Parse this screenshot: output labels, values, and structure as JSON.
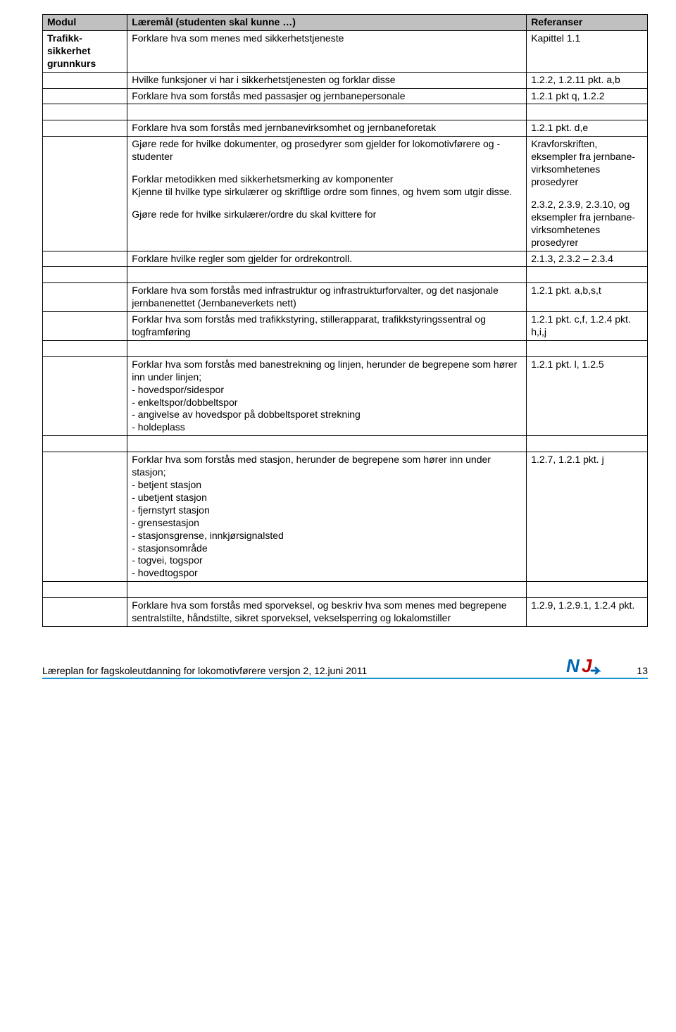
{
  "table": {
    "header_bg": "#c0c0c0",
    "border_color": "#000000",
    "columns": {
      "modul": "Modul",
      "laeremal": "Læremål (studenten skal kunne …)",
      "referanser": "Referanser"
    },
    "rows": [
      {
        "modul_html": "Trafikk-<br>sikkerhet<br>grunnkurs",
        "laeremal_html": "Forklare hva som menes med sikkerhetstjeneste",
        "ref_html": "Kapittel 1.1"
      },
      {
        "modul_html": "",
        "laeremal_html": "Hvilke funksjoner vi har i sikkerhetstjenesten og forklar disse",
        "ref_html": "1.2.2, 1.2.11 pkt. a,b"
      },
      {
        "modul_html": "",
        "laeremal_html": "Forklare hva som forstås med passasjer og jernbanepersonale",
        "ref_html": "1.2.1 pkt q, 1.2.2"
      },
      {
        "modul_html": "",
        "laeremal_html": "",
        "ref_html": ""
      },
      {
        "modul_html": "",
        "laeremal_html": "Forklare hva som forstås med jernbanevirksomhet og jernbaneforetak",
        "ref_html": "1.2.1 pkt. d,e"
      },
      {
        "modul_html": "",
        "laeremal_html": "<p>Gjøre rede for hvilke dokumenter, og prosedyrer som gjelder for lokomotivførere og -studenter</p><p class=\"sp\">Forklar metodikken med sikkerhetsmerking av komponenter</p><p>Kjenne til hvilke type sirkulærer og skriftlige ordre som finnes, og hvem som utgir disse.</p><p class=\"sp\">Gjøre rede for hvilke sirkulærer/ordre du skal kvittere for</p>",
        "ref_html": "<p>Kravforskriften, eksempler fra jernbane-virksomhetenes prosedyrer</p><p class=\"sp\">2.3.2, 2.3.9, 2.3.10, og eksempler fra jernbane-virksomhetenes prosedyrer</p>"
      },
      {
        "modul_html": "",
        "laeremal_html": "Forklare hvilke regler som gjelder for ordrekontroll.",
        "ref_html": "2.1.3, 2.3.2 – 2.3.4"
      },
      {
        "modul_html": "",
        "laeremal_html": "",
        "ref_html": ""
      },
      {
        "modul_html": "",
        "laeremal_html": "Forklare hva som forstås med infrastruktur og infrastrukturforvalter, og det nasjonale jernbanenettet (Jernbaneverkets nett)",
        "ref_html": "1.2.1 pkt. a,b,s,t"
      },
      {
        "modul_html": "",
        "laeremal_html": "Forklar hva som forstås med trafikkstyring, stillerapparat, trafikkstyringssentral og togframføring",
        "ref_html": "1.2.1 pkt. c,f, 1.2.4 pkt. h,i,j"
      },
      {
        "modul_html": "",
        "laeremal_html": "",
        "ref_html": ""
      },
      {
        "modul_html": "",
        "laeremal_html": "<p>Forklar hva som forstås med banestrekning og linjen, herunder de begrepene som hører inn under linjen;</p><p>- hovedspor/sidespor</p><p>- enkeltspor/dobbeltspor</p><p>- angivelse av hovedspor på dobbeltsporet strekning</p><p>- holdeplass</p>",
        "ref_html": "1.2.1 pkt. l, 1.2.5"
      },
      {
        "modul_html": "",
        "laeremal_html": "",
        "ref_html": ""
      },
      {
        "modul_html": "",
        "laeremal_html": "<p>Forklar hva som forstås med stasjon, herunder de begrepene som hører inn under stasjon;</p><p>- betjent stasjon</p><p>- ubetjent stasjon</p><p>- fjernstyrt stasjon</p><p>- grensestasjon</p><p>- stasjonsgrense, innkjørsignalsted</p><p>- stasjonsområde</p><p>- togvei, togspor</p><p>- hovedtogspor</p>",
        "ref_html": "1.2.7, 1.2.1 pkt. j"
      },
      {
        "modul_html": "",
        "laeremal_html": "",
        "ref_html": ""
      },
      {
        "modul_html": "",
        "laeremal_html": "Forklare hva som forstås med sporveksel, og beskriv hva som menes med begrepene sentralstilte, håndstilte, sikret sporveksel, vekselsperring og lokalomstiller",
        "ref_html": "1.2.9, 1.2.9.1, 1.2.4 pkt."
      }
    ]
  },
  "footer": {
    "text": "Læreplan for fagskoleutdanning for lokomotivførere versjon 2, 12.juni 2011",
    "pagenum": "13",
    "logo_text": "NJ",
    "logo_color_n": "#0066b3",
    "logo_color_j": "#c00000",
    "underline_color": "#1f8fd6"
  }
}
